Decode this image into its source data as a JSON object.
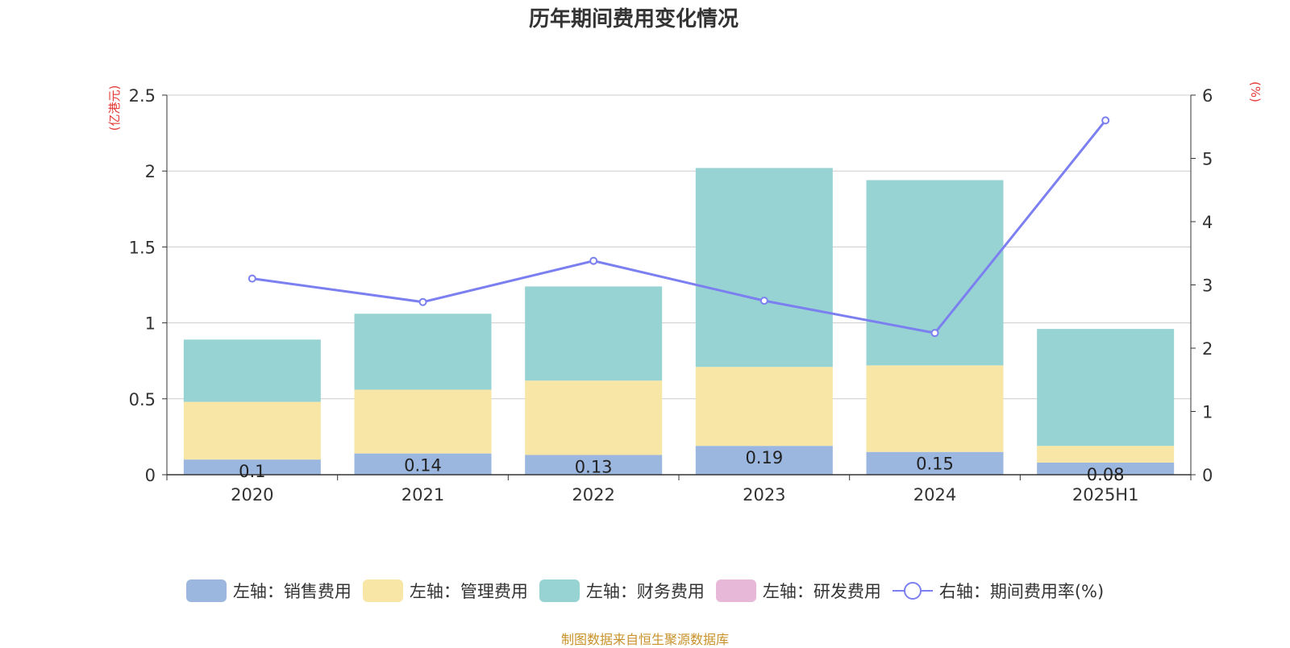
{
  "chart_data": {
    "type": "bar",
    "title": "历年期间费用变化情况",
    "categories": [
      "2020",
      "2021",
      "2022",
      "2023",
      "2024",
      "2025H1"
    ],
    "left_axis": {
      "unit": "(亿港元)",
      "ylim": [
        0,
        2.5
      ],
      "ticks": [
        "0",
        "0.5",
        "1",
        "1.5",
        "2",
        "2.5"
      ]
    },
    "right_axis": {
      "unit": "(%)",
      "ylim": [
        0,
        6
      ],
      "ticks": [
        "0",
        "1",
        "2",
        "3",
        "4",
        "5",
        "6"
      ]
    },
    "stacked": true,
    "series": [
      {
        "name": "左轴：销售费用",
        "type": "bar",
        "axis": "left",
        "color": "#9bb7e0",
        "values": [
          0.1,
          0.14,
          0.13,
          0.19,
          0.15,
          0.08
        ],
        "labels": [
          "0.1",
          "0.14",
          "0.13",
          "0.19",
          "0.15",
          "0.08"
        ]
      },
      {
        "name": "左轴：管理费用",
        "type": "bar",
        "axis": "left",
        "color": "#f7e6a6",
        "values": [
          0.38,
          0.42,
          0.49,
          0.52,
          0.57,
          0.11
        ]
      },
      {
        "name": "左轴：财务费用",
        "type": "bar",
        "axis": "left",
        "color": "#97d3d3",
        "values": [
          0.41,
          0.5,
          0.62,
          1.31,
          1.22,
          0.77
        ]
      },
      {
        "name": "左轴：研发费用",
        "type": "bar",
        "axis": "left",
        "color": "#e8b8d8",
        "values": [
          0,
          0,
          0,
          0,
          0,
          0
        ]
      },
      {
        "name": "右轴：期间费用率(%)",
        "type": "line",
        "axis": "right",
        "color": "#7b7fef",
        "values": [
          3.1,
          2.73,
          3.38,
          2.75,
          2.24,
          5.6
        ]
      }
    ],
    "grid": true,
    "legend_position": "bottom"
  },
  "source": "制图数据来自恒生聚源数据库"
}
